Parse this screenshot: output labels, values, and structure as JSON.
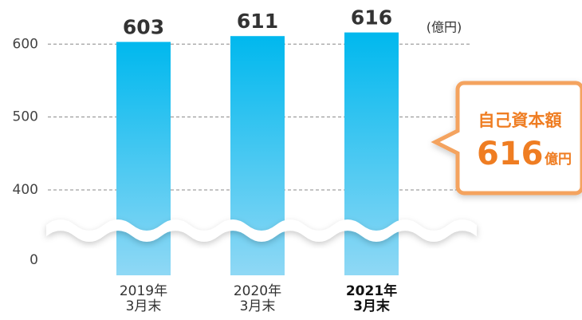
{
  "chart_data": {
    "type": "bar",
    "unit_label": "(億円)",
    "categories": [
      "2019年\n3月末",
      "2020年\n3月末",
      "2021年\n3月末"
    ],
    "values": [
      603,
      611,
      616
    ],
    "color": "#00b8ee",
    "ylim": [
      0,
      620
    ],
    "yticks": [
      0,
      400,
      500,
      600
    ],
    "axis_break": true,
    "grid": true,
    "highlight_category": 2,
    "callout": {
      "title": "自己資本額",
      "value": "616",
      "unit": "億円"
    }
  }
}
